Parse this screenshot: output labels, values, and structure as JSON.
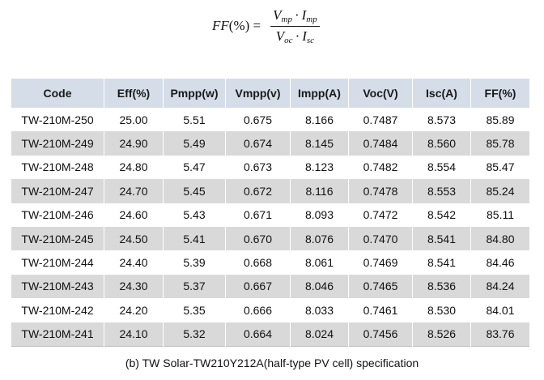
{
  "formula": {
    "lhs": "FF",
    "lhs_unit": "(%) =",
    "num_a": "V",
    "num_a_sub": "mp",
    "num_b": "I",
    "num_b_sub": "mp",
    "den_a": "V",
    "den_a_sub": "oc",
    "den_b": "I",
    "den_b_sub": "sc",
    "dot": "·"
  },
  "table": {
    "headers": [
      "Code",
      "Eff(%)",
      "Pmpp(w)",
      "Vmpp(v)",
      "Impp(A)",
      "Voc(V)",
      "Isc(A)",
      "FF(%)"
    ],
    "rows": [
      [
        "TW-210M-250",
        "25.00",
        "5.51",
        "0.675",
        "8.166",
        "0.7487",
        "8.573",
        "85.89"
      ],
      [
        "TW-210M-249",
        "24.90",
        "5.49",
        "0.674",
        "8.145",
        "0.7484",
        "8.560",
        "85.78"
      ],
      [
        "TW-210M-248",
        "24.80",
        "5.47",
        "0.673",
        "8.123",
        "0.7482",
        "8.554",
        "85.47"
      ],
      [
        "TW-210M-247",
        "24.70",
        "5.45",
        "0.672",
        "8.116",
        "0.7478",
        "8.553",
        "85.24"
      ],
      [
        "TW-210M-246",
        "24.60",
        "5.43",
        "0.671",
        "8.093",
        "0.7472",
        "8.542",
        "85.11"
      ],
      [
        "TW-210M-245",
        "24.50",
        "5.41",
        "0.670",
        "8.076",
        "0.7470",
        "8.541",
        "84.80"
      ],
      [
        "TW-210M-244",
        "24.40",
        "5.39",
        "0.668",
        "8.061",
        "0.7469",
        "8.541",
        "84.46"
      ],
      [
        "TW-210M-243",
        "24.30",
        "5.37",
        "0.667",
        "8.046",
        "0.7465",
        "8.536",
        "84.24"
      ],
      [
        "TW-210M-242",
        "24.20",
        "5.35",
        "0.666",
        "8.033",
        "0.7461",
        "8.530",
        "84.01"
      ],
      [
        "TW-210M-241",
        "24.10",
        "5.32",
        "0.664",
        "8.024",
        "0.7456",
        "8.526",
        "83.76"
      ]
    ]
  },
  "caption": "(b) TW Solar-TW210Y212A(half-type PV cell) specification",
  "colors": {
    "header_bg": "#d5dde8",
    "row_alt_bg": "#d9d9d9",
    "row_bg": "#ffffff"
  }
}
